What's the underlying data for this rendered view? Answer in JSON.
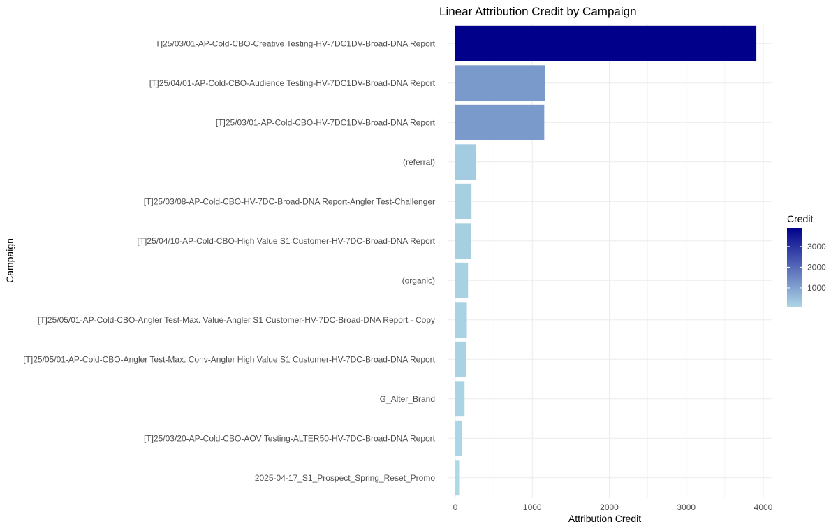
{
  "chart_data": {
    "type": "bar",
    "orientation": "horizontal",
    "title": "Linear Attribution Credit by Campaign",
    "xlabel": "Attribution Credit",
    "ylabel": "Campaign",
    "xlim": [
      0,
      4000
    ],
    "xticks": [
      0,
      1000,
      2000,
      3000,
      4000
    ],
    "grid": true,
    "categories": [
      "[T]25/03/01-AP-Cold-CBO-Creative Testing-HV-7DC1DV-Broad-DNA Report",
      "[T]25/04/01-AP-Cold-CBO-Audience Testing-HV-7DC1DV-Broad-DNA Report",
      "[T]25/03/01-AP-Cold-CBO-HV-7DC1DV-Broad-DNA Report",
      "(referral)",
      "[T]25/03/08-AP-Cold-CBO-HV-7DC-Broad-DNA Report-Angler Test-Challenger",
      "[T]25/04/10-AP-Cold-CBO-High Value S1 Customer-HV-7DC-Broad-DNA Report",
      "(organic)",
      "[T]25/05/01-AP-Cold-CBO-Angler Test-Max. Value-Angler S1 Customer-HV-7DC-Broad-DNA Report - Copy",
      "[T]25/05/01-AP-Cold-CBO-Angler Test-Max. Conv-Angler High Value S1 Customer-HV-7DC-Broad-DNA Report",
      "G_Alter_Brand",
      "[T]25/03/20-AP-Cold-CBO-AOV Testing-ALTER50-HV-7DC-Broad-DNA Report",
      "2025-04-17_S1_Prospect_Spring_Reset_Promo"
    ],
    "values": [
      3910,
      1165,
      1155,
      270,
      210,
      200,
      165,
      150,
      140,
      120,
      85,
      50
    ],
    "legend": {
      "title": "Credit",
      "placement": "right",
      "ticks": [
        1000,
        2000,
        3000
      ],
      "range": [
        50,
        3910
      ],
      "low_color": "#ADD8E6",
      "high_color": "#00008B"
    }
  }
}
